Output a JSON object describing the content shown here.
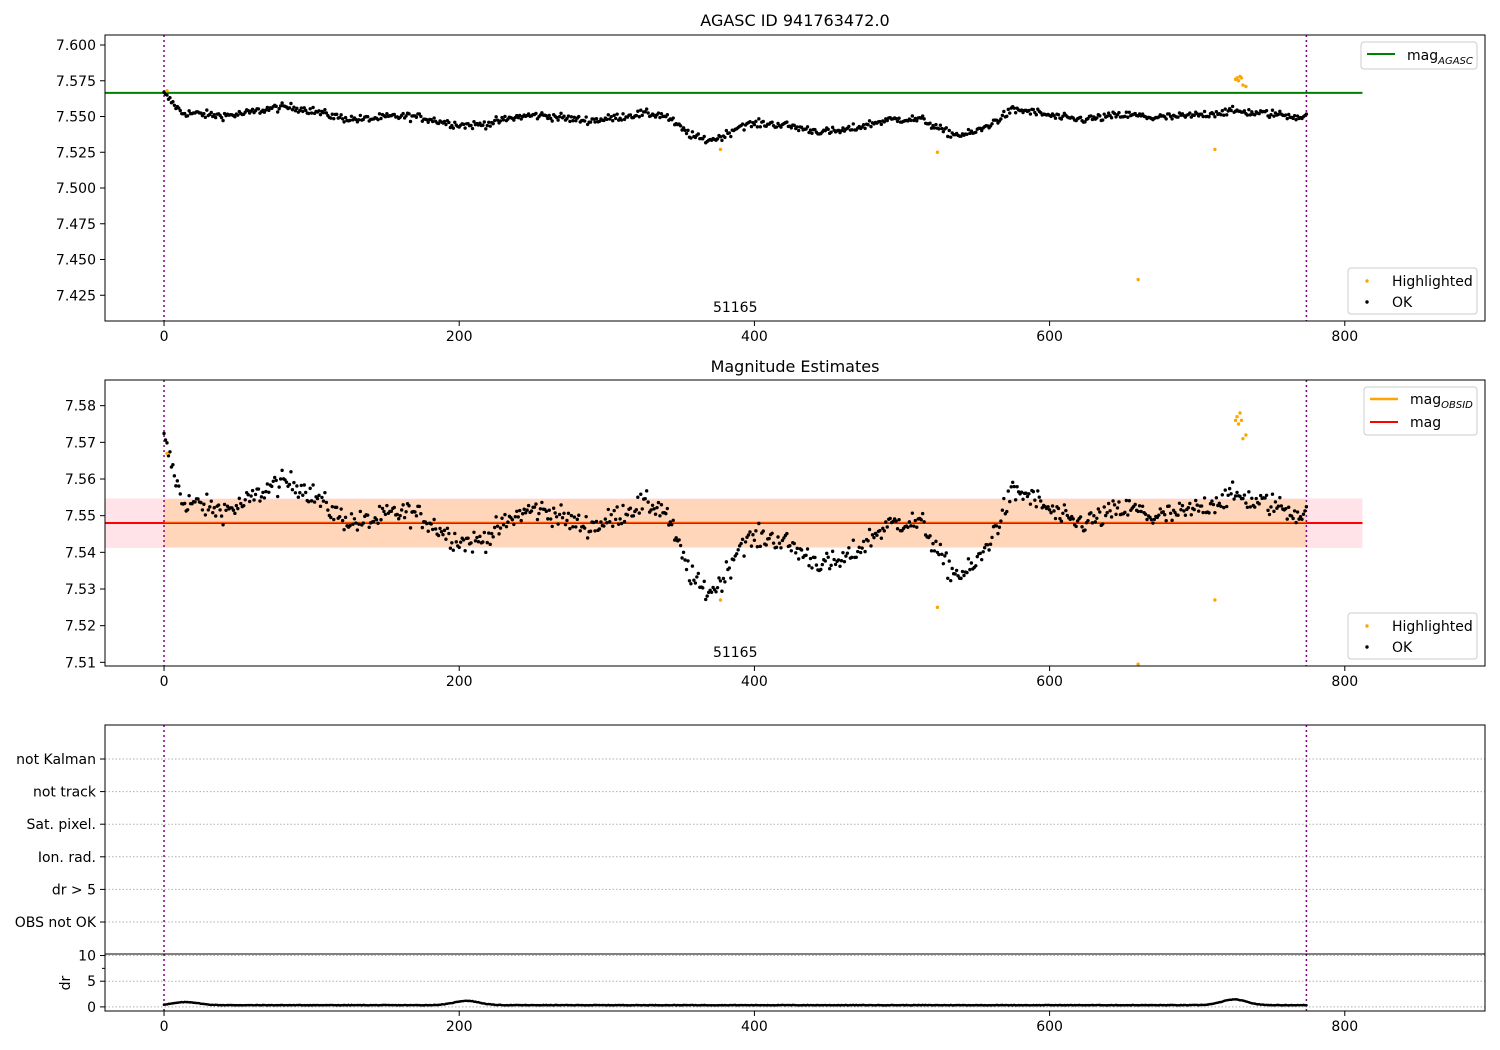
{
  "chart_data": [
    {
      "type": "scatter",
      "title": "AGASC ID 941763472.0",
      "xlabel": "",
      "ylabel": "",
      "xlim": [
        -40,
        895
      ],
      "ylim": [
        7.407,
        7.607
      ],
      "xticks": [
        0,
        200,
        400,
        600,
        800
      ],
      "yticks": [
        7.425,
        7.45,
        7.475,
        7.5,
        7.525,
        7.55,
        7.575,
        7.6
      ],
      "ytick_labels": [
        "7.425",
        "7.450",
        "7.475",
        "7.500",
        "7.525",
        "7.550",
        "7.575",
        "7.600"
      ],
      "grid": false,
      "vlines": [
        0,
        774
      ],
      "obsid_label": {
        "text": "51165",
        "x": 387
      },
      "hline": {
        "name": "mag_AGASC",
        "y": 7.5665,
        "x_end": 812,
        "color": "#008000"
      },
      "highlighted": [
        [
          2,
          7.568
        ],
        [
          377,
          7.527
        ],
        [
          524,
          7.525
        ],
        [
          660,
          7.436
        ],
        [
          712,
          7.527
        ],
        [
          726,
          7.576
        ],
        [
          727,
          7.577
        ],
        [
          728,
          7.575
        ],
        [
          729,
          7.578
        ],
        [
          730,
          7.577
        ],
        [
          731,
          7.572
        ],
        [
          733,
          7.571
        ]
      ],
      "ok_model": {
        "n": 775,
        "mean": 7.548,
        "noise": 0.004
      },
      "legend_top": [
        "mag_AGASC"
      ],
      "legend_bottom": [
        "Highlighted",
        "OK"
      ],
      "legend_placement": "top-right / bottom-right"
    },
    {
      "type": "scatter",
      "title": "Magnitude Estimates",
      "xlabel": "",
      "ylabel": "",
      "xlim": [
        -40,
        895
      ],
      "ylim": [
        7.509,
        7.587
      ],
      "xticks": [
        0,
        200,
        400,
        600,
        800
      ],
      "yticks": [
        7.51,
        7.52,
        7.53,
        7.54,
        7.55,
        7.56,
        7.57,
        7.58
      ],
      "ytick_labels": [
        "7.51",
        "7.52",
        "7.53",
        "7.54",
        "7.55",
        "7.56",
        "7.57",
        "7.58"
      ],
      "grid": false,
      "vlines": [
        0,
        774
      ],
      "obsid_label": {
        "text": "51165",
        "x": 387
      },
      "mag": {
        "y": 7.548,
        "x_end": 812,
        "color": "#ff0000"
      },
      "mag_band": {
        "y_low": 7.5412,
        "y_high": 7.5547,
        "color": "#ffc0cb"
      },
      "obsid_band": {
        "x": [
          0,
          774
        ],
        "y_low": 7.5415,
        "y_high": 7.5545,
        "color": "#ffa500"
      },
      "highlighted": [
        [
          2,
          7.567
        ],
        [
          377,
          7.527
        ],
        [
          524,
          7.525
        ],
        [
          660,
          7.5095
        ],
        [
          712,
          7.527
        ],
        [
          726,
          7.576
        ],
        [
          727,
          7.577
        ],
        [
          728,
          7.575
        ],
        [
          729,
          7.578
        ],
        [
          730,
          7.576
        ],
        [
          731,
          7.571
        ],
        [
          733,
          7.572
        ]
      ],
      "ok_model": {
        "n": 775,
        "mean": 7.548,
        "noise": 0.0045
      },
      "legend_top": [
        "mag_OBSID",
        "mag"
      ],
      "legend_bottom": [
        "Highlighted",
        "OK"
      ],
      "legend_placement": "top-right / bottom-right"
    },
    {
      "type": "scatter",
      "title": "",
      "xlim": [
        -40,
        895
      ],
      "categories": [
        "not Kalman",
        "not track",
        "Sat. pixel.",
        "Ion. rad.",
        "dr > 5",
        "OBS not OK"
      ],
      "grid": true,
      "vlines": [
        0,
        774
      ],
      "flags": []
    },
    {
      "type": "line",
      "title": "",
      "xlabel": "",
      "ylabel": "dr",
      "xlim": [
        -40,
        895
      ],
      "ylim": [
        -0.8,
        10.3
      ],
      "xticks": [
        0,
        200,
        400,
        600,
        800
      ],
      "yticks": [
        0,
        5,
        10
      ],
      "grid": true,
      "vlines": [
        0,
        774
      ],
      "dr_model": {
        "n": 775,
        "mean": 0.3,
        "bumps": [
          [
            15,
            0.6
          ],
          [
            205,
            0.85
          ],
          [
            725,
            1.1
          ]
        ]
      }
    }
  ],
  "legend_labels": {
    "mag_agasc": {
      "main": "mag",
      "sub": "AGASC"
    },
    "mag_obsid": {
      "main": "mag",
      "sub": "OBSID"
    },
    "mag": "mag",
    "highlighted": "Highlighted",
    "ok": "OK"
  },
  "colors": {
    "ok": "#000000",
    "highlighted": "#ffa500",
    "vline": "#800080",
    "agasc_line": "#008000",
    "mag_line": "#ff0000"
  }
}
